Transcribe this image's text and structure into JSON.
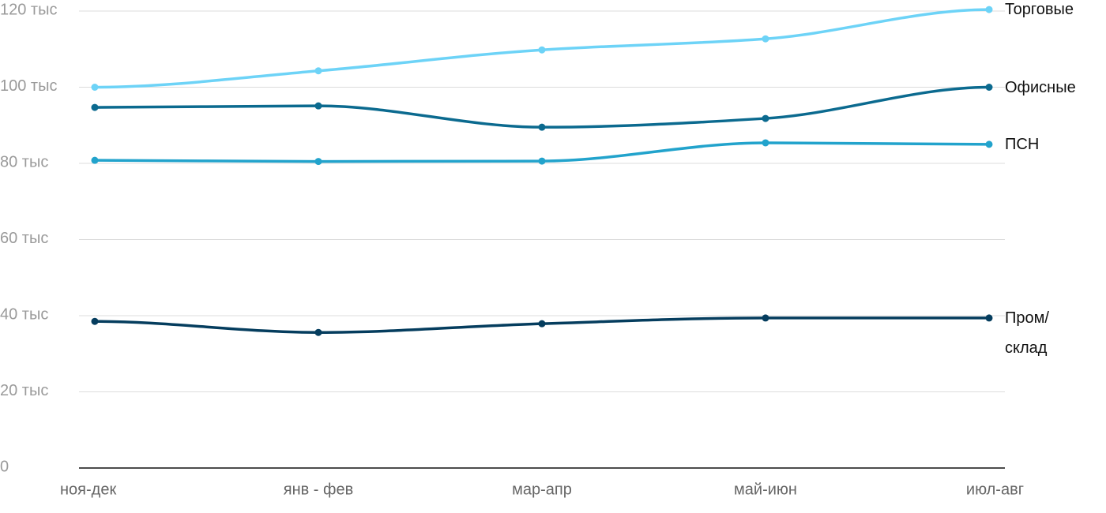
{
  "chart_data": {
    "type": "line",
    "categories": [
      "ноя-дек",
      "янв - фев",
      "мар-апр",
      "май-июн",
      "июл-авг"
    ],
    "series": [
      {
        "name": "Торговые",
        "color": "#6dd3f7",
        "values": [
          100000,
          104300,
          109800,
          112700,
          120400
        ]
      },
      {
        "name": "Офисные",
        "color": "#0b6a8f",
        "values": [
          94700,
          95100,
          89500,
          91800,
          100000
        ]
      },
      {
        "name": "ПСН",
        "color": "#22a3cc",
        "values": [
          80800,
          80500,
          80600,
          85400,
          85000
        ]
      },
      {
        "name": "Пром/\nсклад",
        "color": "#053d5e",
        "values": [
          38500,
          35600,
          37900,
          39400,
          39400
        ]
      }
    ],
    "ylim": [
      0,
      120000
    ],
    "yticks": [
      0,
      {
        "value": 20000,
        "label": "20 тыс"
      },
      {
        "value": 40000,
        "label": "40 тыс"
      },
      {
        "value": 60000,
        "label": "60 тыс"
      },
      {
        "value": 80000,
        "label": "80 тыс"
      },
      {
        "value": 100000,
        "label": "100 тыс"
      },
      {
        "value": 120000,
        "label": "120 тыс"
      }
    ],
    "grid": true
  }
}
